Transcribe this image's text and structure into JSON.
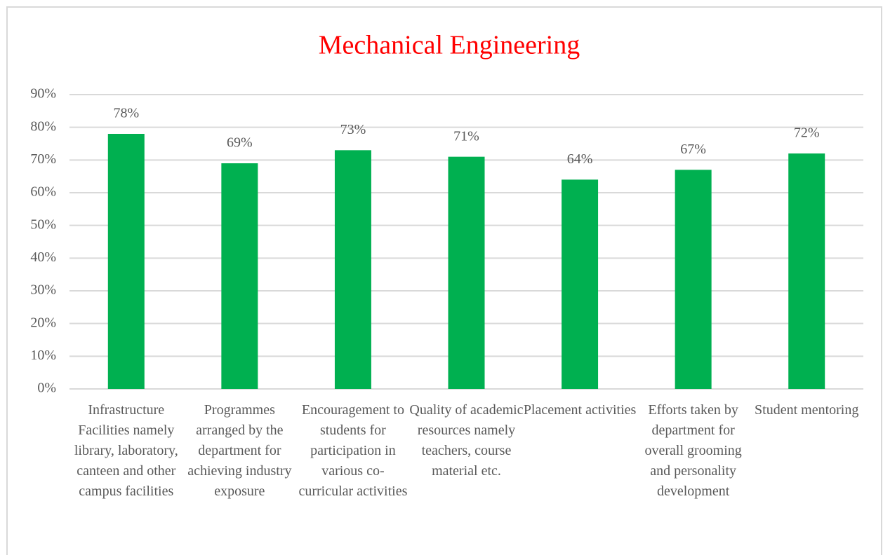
{
  "chart_data": {
    "type": "bar",
    "title": "Mechanical Engineering",
    "categories": [
      "Infrastructure Facilities namely library, laboratory, canteen and other campus facilities",
      "Programmes arranged by the department for achieving industry exposure",
      "Encouragement to students for participation in various co-curricular activities",
      "Quality of academic resources namely teachers, course material etc.",
      "Placement activities",
      "Efforts taken by department for overall grooming and personality development",
      "Student mentoring"
    ],
    "values": [
      78,
      69,
      73,
      71,
      64,
      67,
      72
    ],
    "value_labels": [
      "78%",
      "69%",
      "73%",
      "71%",
      "64%",
      "67%",
      "72%"
    ],
    "color": "#00b050",
    "ylim": [
      0,
      90
    ],
    "yticks": [
      {
        "value": 0,
        "label": "0%"
      },
      {
        "value": 10,
        "label": "10%"
      },
      {
        "value": 20,
        "label": "20%"
      },
      {
        "value": 30,
        "label": "30%"
      },
      {
        "value": 40,
        "label": "40%"
      },
      {
        "value": 50,
        "label": "50%"
      },
      {
        "value": 60,
        "label": "60%"
      },
      {
        "value": 70,
        "label": "70%"
      },
      {
        "value": 80,
        "label": "80%"
      },
      {
        "value": 90,
        "label": "90%"
      }
    ],
    "grid": true
  }
}
